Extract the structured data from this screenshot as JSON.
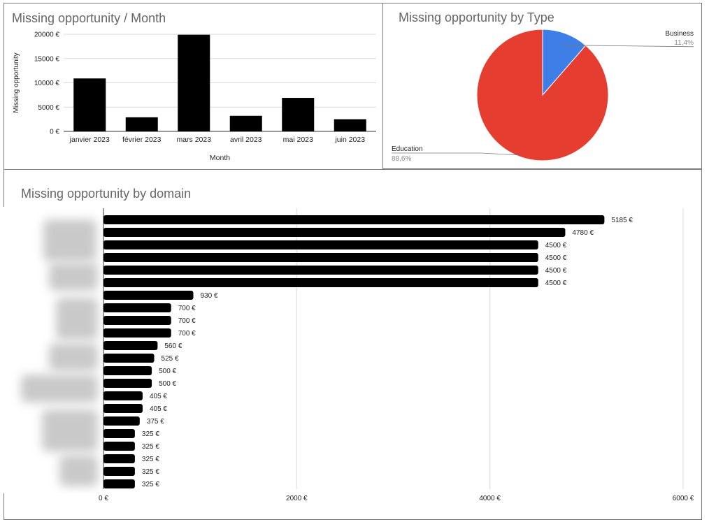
{
  "chart_data": [
    {
      "type": "bar",
      "title": "Missing opportunity / Month",
      "xlabel": "Month",
      "ylabel": "Missing opportunity",
      "categories": [
        "janvier 2023",
        "février 2023",
        "mars 2023",
        "avril 2023",
        "mai 2023",
        "juin 2023"
      ],
      "values": [
        10900,
        2900,
        19900,
        3200,
        6900,
        2500
      ],
      "ylim": [
        0,
        20000
      ],
      "y_ticks": [
        0,
        5000,
        10000,
        15000,
        20000
      ],
      "y_tick_labels": [
        "0 €",
        "5000 €",
        "10000 €",
        "15000 €",
        "20000 €"
      ],
      "bar_color": "#000000",
      "grid": true
    },
    {
      "type": "pie",
      "title": "Missing opportunity by Type",
      "slices": [
        {
          "label": "Business",
          "percent_label": "11,4%",
          "value": 11.4,
          "color": "#3d7fe6"
        },
        {
          "label": "Education",
          "percent_label": "88,6%",
          "value": 88.6,
          "color": "#e53e30"
        }
      ]
    },
    {
      "type": "bar",
      "orientation": "horizontal",
      "title": "Missing opportunity by domain",
      "values": [
        5185,
        4780,
        4500,
        4500,
        4500,
        4500,
        930,
        700,
        700,
        700,
        560,
        525,
        500,
        500,
        405,
        405,
        375,
        325,
        325,
        325,
        325,
        325
      ],
      "value_labels": [
        "5185 €",
        "4780 €",
        "4500 €",
        "4500 €",
        "4500 €",
        "4500 €",
        "930 €",
        "700 €",
        "700 €",
        "700 €",
        "560 €",
        "525 €",
        "500 €",
        "500 €",
        "405 €",
        "405 €",
        "375 €",
        "325 €",
        "325 €",
        "325 €",
        "325 €",
        "325 €"
      ],
      "xlim": [
        0,
        6000
      ],
      "x_ticks": [
        0,
        2000,
        4000,
        6000
      ],
      "x_tick_labels": [
        "0 €",
        "2000 €",
        "4000 €",
        "6000 €"
      ],
      "bar_color": "#000000",
      "grid": true
    }
  ]
}
